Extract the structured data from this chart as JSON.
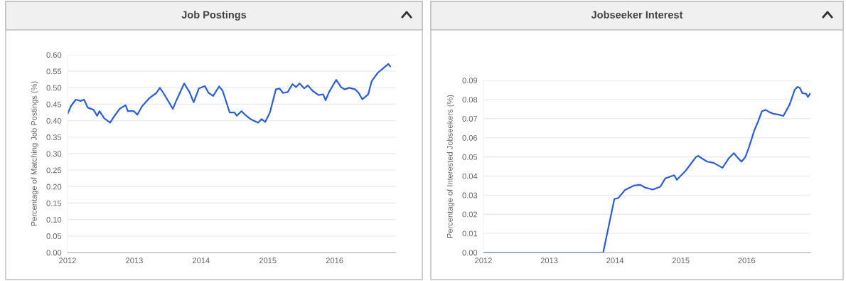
{
  "chart_data": [
    {
      "type": "line",
      "title": "Job Postings",
      "ylabel": "Percentage of Matching Job Postings (%)",
      "xlim": [
        2012,
        2016.92
      ],
      "xticks": [
        2012,
        2013,
        2014,
        2015,
        2016
      ],
      "ylim": [
        0,
        0.6
      ],
      "yticks": [
        {
          "value": 0,
          "label": "0.00"
        },
        {
          "value": 0.05,
          "label": "0.05"
        },
        {
          "value": 0.1,
          "label": "0.10"
        },
        {
          "value": 0.15,
          "label": "0.15"
        },
        {
          "value": 0.2,
          "label": "0.20"
        },
        {
          "value": 0.25,
          "label": "0.25"
        },
        {
          "value": 0.3,
          "label": "0.30"
        },
        {
          "value": 0.35,
          "label": "0.35"
        },
        {
          "value": 0.4,
          "label": "0.40"
        },
        {
          "value": 0.45,
          "label": "0.45"
        },
        {
          "value": 0.5,
          "label": "0.50"
        },
        {
          "value": 0.55,
          "label": "0.55"
        },
        {
          "value": 0.6,
          "label": "0.60"
        }
      ],
      "grid": "y",
      "marker": "none",
      "line_style": "solid",
      "series": [
        {
          "color": "#2a5fd6",
          "x": [
            2012.0,
            2012.05,
            2012.124,
            2012.195,
            2012.248,
            2012.301,
            2012.39,
            2012.443,
            2012.479,
            2012.55,
            2012.638,
            2012.691,
            2012.78,
            2012.869,
            2012.904,
            2012.993,
            2013.046,
            2013.117,
            2013.223,
            2013.33,
            2013.383,
            2013.436,
            2013.578,
            2013.631,
            2013.748,
            2013.826,
            2013.89,
            2013.968,
            2014.057,
            2014.11,
            2014.181,
            2014.27,
            2014.323,
            2014.429,
            2014.5,
            2014.535,
            2014.606,
            2014.66,
            2014.748,
            2014.855,
            2014.908,
            2014.961,
            2015.032,
            2015.121,
            2015.174,
            2015.227,
            2015.298,
            2015.369,
            2015.422,
            2015.475,
            2015.546,
            2015.599,
            2015.67,
            2015.759,
            2015.83,
            2015.865,
            2015.918,
            2016.024,
            2016.096,
            2016.149,
            2016.22,
            2016.309,
            2016.362,
            2016.415,
            2016.504,
            2016.556,
            2016.646,
            2016.734,
            2016.805,
            2016.833
          ],
          "values": [
            0.42,
            0.444,
            0.464,
            0.46,
            0.464,
            0.44,
            0.433,
            0.415,
            0.429,
            0.407,
            0.394,
            0.411,
            0.436,
            0.447,
            0.429,
            0.429,
            0.418,
            0.444,
            0.468,
            0.484,
            0.5,
            0.484,
            0.436,
            0.462,
            0.513,
            0.487,
            0.456,
            0.498,
            0.505,
            0.485,
            0.475,
            0.504,
            0.491,
            0.425,
            0.425,
            0.415,
            0.429,
            0.418,
            0.404,
            0.394,
            0.405,
            0.396,
            0.425,
            0.495,
            0.498,
            0.484,
            0.487,
            0.511,
            0.502,
            0.513,
            0.498,
            0.507,
            0.491,
            0.478,
            0.48,
            0.462,
            0.487,
            0.524,
            0.502,
            0.495,
            0.5,
            0.495,
            0.484,
            0.465,
            0.48,
            0.52,
            0.545,
            0.56,
            0.572,
            0.565
          ]
        }
      ]
    },
    {
      "type": "line",
      "title": "Jobseeker Interest",
      "ylabel": "Percentage of Interested Jobseekers (%)",
      "xlim": [
        2012,
        2016.97
      ],
      "xticks": [
        2012,
        2013,
        2014,
        2015,
        2016
      ],
      "ylim": [
        0,
        0.09
      ],
      "yticks": [
        {
          "value": 0,
          "label": "0.00"
        },
        {
          "value": 0.01,
          "label": "0.01"
        },
        {
          "value": 0.02,
          "label": "0.02"
        },
        {
          "value": 0.03,
          "label": "0.03"
        },
        {
          "value": 0.04,
          "label": "0.04"
        },
        {
          "value": 0.05,
          "label": "0.05"
        },
        {
          "value": 0.06,
          "label": "0.06"
        },
        {
          "value": 0.07,
          "label": "0.07"
        },
        {
          "value": 0.08,
          "label": "0.08"
        },
        {
          "value": 0.09,
          "label": "0.09"
        }
      ],
      "grid": "y",
      "marker": "none",
      "line_style": "solid",
      "series": [
        {
          "color": "#2a5fd6",
          "x": [
            2012.0,
            2013.82,
            2013.99,
            2014.05,
            2014.148,
            2014.283,
            2014.38,
            2014.457,
            2014.534,
            2014.572,
            2014.688,
            2014.765,
            2014.861,
            2014.9,
            2014.939,
            2015.074,
            2015.151,
            2015.228,
            2015.266,
            2015.344,
            2015.402,
            2015.498,
            2015.633,
            2015.729,
            2015.806,
            2015.864,
            2015.922,
            2015.98,
            2016.038,
            2016.115,
            2016.173,
            2016.231,
            2016.288,
            2016.346,
            2016.404,
            2016.5,
            2016.558,
            2016.654,
            2016.731,
            2016.77,
            2016.809,
            2016.847,
            2016.905,
            2016.932,
            2016.963
          ],
          "values": [
            0,
            0,
            0.028,
            0.0285,
            0.0326,
            0.035,
            0.0354,
            0.034,
            0.0333,
            0.0329,
            0.0344,
            0.0388,
            0.04,
            0.0404,
            0.038,
            0.0428,
            0.0463,
            0.0499,
            0.0505,
            0.0487,
            0.0475,
            0.0469,
            0.0443,
            0.0493,
            0.052,
            0.0496,
            0.0475,
            0.0499,
            0.0553,
            0.0637,
            0.0684,
            0.0738,
            0.0746,
            0.0734,
            0.0726,
            0.072,
            0.0714,
            0.0774,
            0.0851,
            0.0866,
            0.0861,
            0.0833,
            0.083,
            0.0813,
            0.083
          ]
        }
      ]
    }
  ]
}
